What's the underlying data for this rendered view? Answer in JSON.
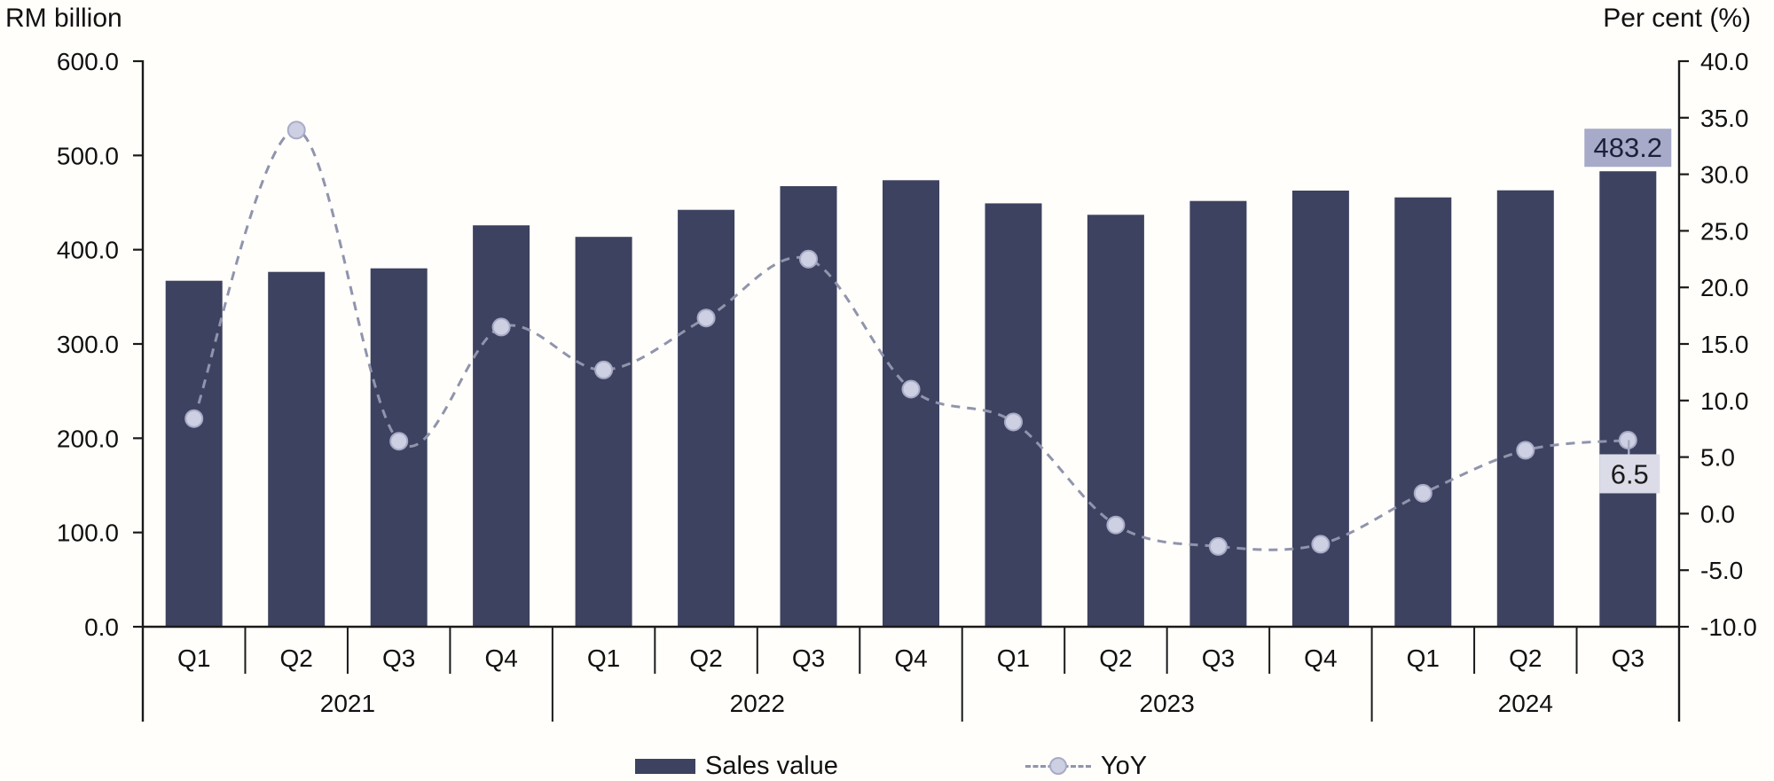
{
  "chart_data": {
    "type": "bar+line",
    "left_axis": {
      "title": "RM billion",
      "min": 0,
      "max": 600,
      "tick_step": 100,
      "tick_labels": [
        "0.0",
        "100.0",
        "200.0",
        "300.0",
        "400.0",
        "500.0",
        "600.0"
      ]
    },
    "right_axis": {
      "title": "Per cent (%)",
      "min": -10,
      "max": 40,
      "tick_step": 5,
      "tick_labels": [
        "-10.0",
        "-5.0",
        "0.0",
        "5.0",
        "10.0",
        "15.0",
        "20.0",
        "25.0",
        "30.0",
        "35.0",
        "40.0"
      ]
    },
    "groups": [
      {
        "year": "2021",
        "quarters": [
          "Q1",
          "Q2",
          "Q3",
          "Q4"
        ]
      },
      {
        "year": "2022",
        "quarters": [
          "Q1",
          "Q2",
          "Q3",
          "Q4"
        ]
      },
      {
        "year": "2023",
        "quarters": [
          "Q1",
          "Q2",
          "Q3",
          "Q4"
        ]
      },
      {
        "year": "2024",
        "quarters": [
          "Q1",
          "Q2",
          "Q3"
        ]
      }
    ],
    "series": [
      {
        "name": "Sales value",
        "type": "bar",
        "axis": "left",
        "color": "#3d4260",
        "values": [
          367.1,
          376.5,
          380.2,
          425.8,
          413.6,
          442.3,
          467.4,
          473.7,
          449.2,
          437.0,
          451.7,
          462.7,
          455.5,
          463.0,
          483.2
        ]
      },
      {
        "name": "YoY",
        "type": "line",
        "axis": "right",
        "line_style": "dashed",
        "line_color": "#9094ac",
        "marker_fill": "#cdd0e2",
        "marker_stroke": "#a8abc6",
        "values": [
          8.4,
          33.9,
          6.4,
          16.5,
          12.7,
          17.3,
          22.5,
          11.0,
          8.1,
          -1.0,
          -2.9,
          -2.7,
          1.8,
          5.6,
          6.5
        ]
      }
    ],
    "data_labels": [
      {
        "series": "Sales value",
        "point_index": 14,
        "text": "483.2",
        "bg_color": "#a7aac8",
        "text_color": "#1d2138"
      },
      {
        "series": "YoY",
        "point_index": 14,
        "text": "6.5",
        "bg_color": "#dbdce8",
        "text_color": "#1b1b1b"
      }
    ],
    "legend": {
      "position": "bottom",
      "items": [
        "Sales value",
        "YoY"
      ]
    }
  }
}
